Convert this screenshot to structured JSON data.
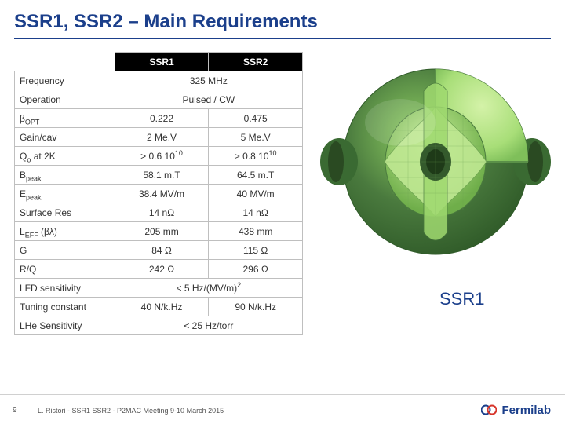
{
  "title": "SSR1, SSR2 – Main Requirements",
  "cavity_label": "SSR1",
  "table": {
    "header": {
      "c1": "SSR1",
      "c2": "SSR2"
    },
    "rows": [
      {
        "label_html": "Frequency",
        "span": true,
        "merged": "325 MHz"
      },
      {
        "label_html": "Operation",
        "span": true,
        "merged": "Pulsed / CW"
      },
      {
        "label_html": "β<sub>OPT</sub>",
        "c1": "0.222",
        "c2": "0.475"
      },
      {
        "label_html": "Gain/cav",
        "c1": "2 Me.V",
        "c2": "5 Me.V"
      },
      {
        "label_html": "Q<sub>o</sub> at 2K",
        "c1_html": "> 0.6 10<sup>10</sup>",
        "c2_html": "> 0.8 10<sup>10</sup>"
      },
      {
        "label_html": "B<sub>peak</sub>",
        "c1": "58.1 m.T",
        "c2": "64.5 m.T"
      },
      {
        "label_html": "E<sub>peak</sub>",
        "c1": "38.4 MV/m",
        "c2": "40 MV/m"
      },
      {
        "label_html": "Surface Res",
        "c1": "14 nΩ",
        "c2": "14 nΩ"
      },
      {
        "label_html": "L<sub>EFF</sub> (βλ)",
        "c1": "205 mm",
        "c2": "438 mm"
      },
      {
        "label_html": "G",
        "c1": "84 Ω",
        "c2": "115 Ω"
      },
      {
        "label_html": "R/Q",
        "c1": "242 Ω",
        "c2": "296 Ω"
      },
      {
        "label_html": "LFD sensitivity",
        "span": true,
        "merged_html": "< 5 Hz/(MV/m)<sup>2</sup>"
      },
      {
        "label_html": "Tuning constant",
        "c1": "40 N/k.Hz",
        "c2": "90 N/k.Hz"
      },
      {
        "label_html": "LHe Sensitivity",
        "span": true,
        "merged": "< 25 Hz/torr"
      }
    ]
  },
  "footer": {
    "page": "9",
    "text": "L. Ristori  -  SSR1 SSR2 - P2MAC Meeting 9-10 March 2015",
    "logo_text": "Fermilab"
  },
  "cavity_svg": {
    "outer_fill": "#4a7a3e",
    "outer_highlight": "#7fbf5a",
    "cut_fill": "#b8e68a",
    "inner_fill": "#9fd96f",
    "shadow": "#2f5a28",
    "rim": "#3a6a32"
  },
  "logo_colors": {
    "blue": "#1b3f8b",
    "red": "#d7342a"
  }
}
